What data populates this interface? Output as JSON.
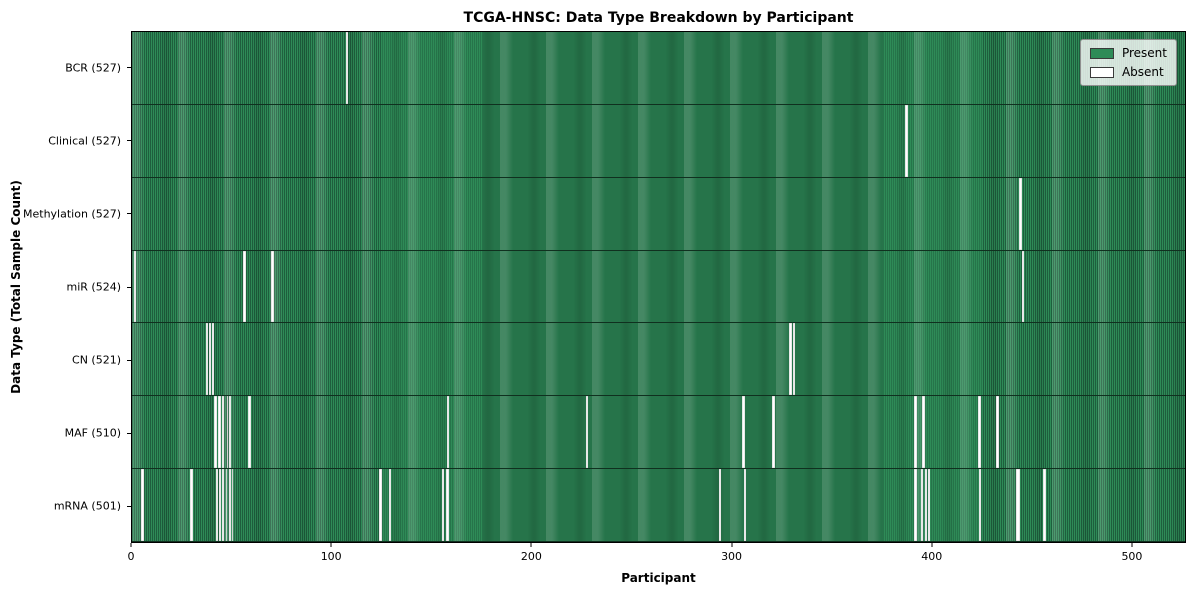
{
  "title": "TCGA-HNSC: Data Type Breakdown by Participant",
  "legend": {
    "present_label": "Present",
    "absent_label": "Absent",
    "position": "upper right"
  },
  "colors": {
    "present": "#2e8b57",
    "present_edge": "#1e5e3d",
    "absent": "#ffffff",
    "row_separator": "#10301f"
  },
  "x_ticks": [
    0,
    100,
    200,
    300,
    400,
    500
  ],
  "chart_data": {
    "type": "heatmap",
    "title": "TCGA-HNSC: Data Type Breakdown by Participant",
    "xlabel": "Participant",
    "ylabel": "Data Type (Total Sample Count)",
    "xlim": [
      0,
      527
    ],
    "x_ticks": [
      0,
      100,
      200,
      300,
      400,
      500
    ],
    "grid": false,
    "legend_position": "upper right",
    "n_participants": 527,
    "value_meaning": {
      "present": 1,
      "absent": 0
    },
    "rows": [
      {
        "label": "BCR (527)",
        "data_type": "BCR",
        "total_sample_count": 527,
        "absent_ranges": [
          [
            107,
            108.2
          ]
        ]
      },
      {
        "label": "Clinical (527)",
        "data_type": "Clinical",
        "total_sample_count": 527,
        "absent_ranges": [
          [
            387,
            388.2
          ]
        ]
      },
      {
        "label": "Methylation (527)",
        "data_type": "Methylation",
        "total_sample_count": 527,
        "absent_ranges": [
          [
            444,
            445.2
          ]
        ]
      },
      {
        "label": "miR (524)",
        "data_type": "miR",
        "total_sample_count": 524,
        "absent_ranges": [
          [
            1,
            2.2
          ],
          [
            55.8,
            57
          ],
          [
            69.8,
            71
          ],
          [
            445.3,
            446.5
          ]
        ]
      },
      {
        "label": "CN (521)",
        "data_type": "CN",
        "total_sample_count": 521,
        "absent_ranges": [
          [
            36.8,
            38
          ],
          [
            38.3,
            39.5
          ],
          [
            39.8,
            41
          ],
          [
            329,
            330.1
          ],
          [
            330.6,
            331.7
          ]
        ]
      },
      {
        "label": "MAF (510)",
        "data_type": "MAF",
        "total_sample_count": 510,
        "absent_ranges": [
          [
            41,
            42.5
          ],
          [
            43,
            44.4
          ],
          [
            45,
            46.2
          ],
          [
            47.3,
            48.2
          ],
          [
            48.5,
            49.3
          ],
          [
            58.3,
            59.4
          ],
          [
            157.5,
            158.7
          ],
          [
            227,
            228.2
          ],
          [
            305.5,
            306.7
          ],
          [
            320.5,
            321.7
          ],
          [
            391.6,
            393
          ],
          [
            395.6,
            397
          ],
          [
            423.6,
            424.9
          ],
          [
            432.6,
            433.7
          ]
        ]
      },
      {
        "label": "mRNA (501)",
        "data_type": "mRNA",
        "total_sample_count": 501,
        "absent_ranges": [
          [
            4.7,
            5.8
          ],
          [
            29.2,
            30.3
          ],
          [
            42,
            43
          ],
          [
            43.6,
            44.6
          ],
          [
            45.2,
            46.2
          ],
          [
            46.8,
            47.8
          ],
          [
            48.4,
            49.4
          ],
          [
            49.8,
            50.4
          ],
          [
            123.5,
            125.1
          ],
          [
            128.5,
            129.7
          ],
          [
            155.2,
            156.4
          ],
          [
            157.3,
            158.5
          ],
          [
            293.7,
            295
          ],
          [
            306.2,
            307.3
          ],
          [
            391.6,
            393
          ],
          [
            395.1,
            396.1
          ],
          [
            396.7,
            397.7
          ],
          [
            398.2,
            399.2
          ],
          [
            423.7,
            425
          ],
          [
            442.6,
            444.6
          ],
          [
            456.1,
            457.6
          ]
        ]
      }
    ]
  }
}
